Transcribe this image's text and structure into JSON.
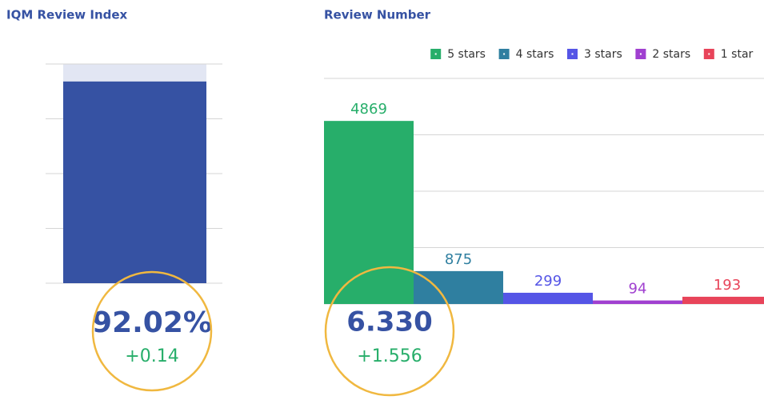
{
  "chart_data": [
    {
      "type": "gauge",
      "title": "IQM Review Index",
      "values": [
        92.02
      ],
      "value_labels": [
        "92.02%"
      ],
      "change": "+0.14",
      "color": "#3652a3",
      "track_color": "#e2e6f3",
      "ylim": [
        0,
        100
      ],
      "yticks": [
        0,
        25,
        50,
        75,
        100
      ],
      "grid": true
    },
    {
      "type": "bar",
      "title": "Review Number",
      "total": "6.330",
      "change": "+1.556",
      "series": [
        {
          "name": "5 stars",
          "color": "#27ae6a",
          "values": [
            4869
          ]
        },
        {
          "name": "4 stars",
          "color": "#2f7fa0",
          "values": [
            875
          ]
        },
        {
          "name": "3 stars",
          "color": "#5555e6",
          "values": [
            299
          ]
        },
        {
          "name": "2 stars",
          "color": "#a040d0",
          "values": [
            94
          ]
        },
        {
          "name": "1 star",
          "color": "#e8445a",
          "values": [
            193
          ]
        }
      ],
      "ylim": [
        0,
        6000
      ],
      "yticks": [
        0,
        1500,
        3000,
        4500,
        6000
      ],
      "grid": true,
      "legend": "top"
    }
  ]
}
